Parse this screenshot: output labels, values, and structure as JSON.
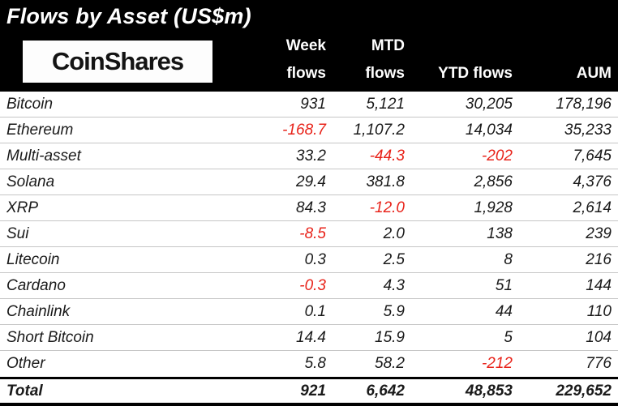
{
  "title": "Flows by Asset (US$m)",
  "logo_text": "CoinShares",
  "columns": {
    "week": [
      "Week",
      "flows"
    ],
    "mtd": [
      "MTD",
      "flows"
    ],
    "ytd": "YTD flows",
    "aum": "AUM"
  },
  "rows": [
    {
      "asset": "Bitcoin",
      "week": "931",
      "mtd": "5,121",
      "ytd": "30,205",
      "aum": "178,196"
    },
    {
      "asset": "Ethereum",
      "week": "-168.7",
      "mtd": "1,107.2",
      "ytd": "14,034",
      "aum": "35,233"
    },
    {
      "asset": "Multi-asset",
      "week": "33.2",
      "mtd": "-44.3",
      "ytd": "-202",
      "aum": "7,645"
    },
    {
      "asset": "Solana",
      "week": "29.4",
      "mtd": "381.8",
      "ytd": "2,856",
      "aum": "4,376"
    },
    {
      "asset": "XRP",
      "week": "84.3",
      "mtd": "-12.0",
      "ytd": "1,928",
      "aum": "2,614"
    },
    {
      "asset": "Sui",
      "week": "-8.5",
      "mtd": "2.0",
      "ytd": "138",
      "aum": "239"
    },
    {
      "asset": "Litecoin",
      "week": "0.3",
      "mtd": "2.5",
      "ytd": "8",
      "aum": "216"
    },
    {
      "asset": "Cardano",
      "week": "-0.3",
      "mtd": "4.3",
      "ytd": "51",
      "aum": "144"
    },
    {
      "asset": "Chainlink",
      "week": "0.1",
      "mtd": "5.9",
      "ytd": "44",
      "aum": "110"
    },
    {
      "asset": "Short Bitcoin",
      "week": "14.4",
      "mtd": "15.9",
      "ytd": "5",
      "aum": "104"
    },
    {
      "asset": "Other",
      "week": "5.8",
      "mtd": "58.2",
      "ytd": "-212",
      "aum": "776"
    }
  ],
  "total": {
    "asset": "Total",
    "week": "921",
    "mtd": "6,642",
    "ytd": "48,853",
    "aum": "229,652"
  },
  "colors": {
    "negative": "#e8231a",
    "header_bg": "#000000",
    "header_text": "#ffffff",
    "body_text": "#1a1a1a"
  },
  "chart_data": {
    "type": "table",
    "title": "Flows by Asset (US$m)",
    "categories": [
      "Bitcoin",
      "Ethereum",
      "Multi-asset",
      "Solana",
      "XRP",
      "Sui",
      "Litecoin",
      "Cardano",
      "Chainlink",
      "Short Bitcoin",
      "Other",
      "Total"
    ],
    "series": [
      {
        "name": "Week flows",
        "values": [
          931,
          -168.7,
          33.2,
          29.4,
          84.3,
          -8.5,
          0.3,
          -0.3,
          0.1,
          14.4,
          5.8,
          921
        ]
      },
      {
        "name": "MTD flows",
        "values": [
          5121,
          1107.2,
          -44.3,
          381.8,
          -12.0,
          2.0,
          2.5,
          4.3,
          5.9,
          15.9,
          58.2,
          6642
        ]
      },
      {
        "name": "YTD flows",
        "values": [
          30205,
          14034,
          -202,
          2856,
          1928,
          138,
          8,
          51,
          44,
          5,
          -212,
          48853
        ]
      },
      {
        "name": "AUM",
        "values": [
          178196,
          35233,
          7645,
          4376,
          2614,
          239,
          216,
          144,
          110,
          104,
          776,
          229652
        ]
      }
    ],
    "layout": {
      "negative_values_colored_red": true,
      "header_background": "black",
      "body_font_style": "italic"
    }
  }
}
